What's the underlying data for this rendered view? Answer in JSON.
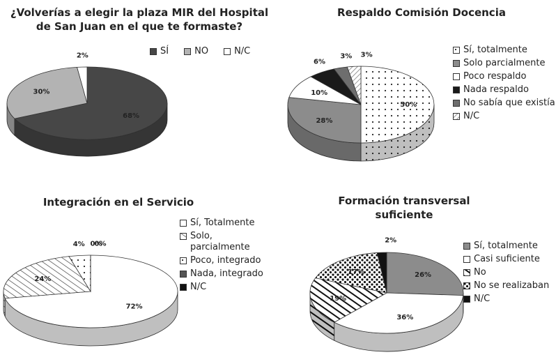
{
  "chart_data": [
    {
      "type": "pie",
      "title": "¿Volverías a elegir la plaza MIR del Hospital de San Juan en el que te formaste?",
      "categories": [
        "SÍ",
        "NO",
        "N/C"
      ],
      "values": [
        68,
        30,
        2
      ],
      "value_labels": [
        "68%",
        "30%",
        "2%"
      ],
      "colors": [
        "#474747",
        "#b3b3b3",
        "#ffffff"
      ],
      "patterns": [
        null,
        null,
        null
      ],
      "legend": "top"
    },
    {
      "type": "pie",
      "title": "Respaldo Comisión Docencia",
      "categories": [
        "Sí, totalmente",
        "Solo parcialmente",
        "Poco respaldo",
        "Nada respaldo",
        "No sabía que existía",
        "N/C"
      ],
      "values": [
        50,
        28,
        10,
        6,
        3,
        3
      ],
      "value_labels": [
        "50%",
        "28%",
        "10%",
        "6%",
        "3%",
        "3%"
      ],
      "colors": [
        "#ffffff",
        "#8c8c8c",
        "#ffffff",
        "#1a1a1a",
        "#6e6e6e",
        "#ffffff"
      ],
      "patterns": [
        "dots",
        null,
        null,
        null,
        null,
        "hatch"
      ],
      "legend": "right"
    },
    {
      "type": "pie",
      "title": "Integración en el Servicio",
      "categories": [
        "Sí, Totalmente",
        "Solo, parcialmente",
        "Poco, integrado",
        "Nada, integrado",
        "N/C"
      ],
      "values": [
        72,
        24,
        4,
        0,
        0
      ],
      "value_labels": [
        "72%",
        "24%",
        "4%",
        "0%",
        "0%"
      ],
      "colors": [
        "#ffffff",
        "#ffffff",
        "#ffffff",
        "#555555",
        "#111111"
      ],
      "patterns": [
        null,
        "diag",
        "dots",
        null,
        null
      ],
      "legend": "right"
    },
    {
      "type": "pie",
      "title": "Formación transversal suficiente",
      "categories": [
        "Sí, totalmente",
        "Casi suficiente",
        "No",
        "No se realizaban",
        "N/C"
      ],
      "values": [
        26,
        36,
        19,
        17,
        2
      ],
      "value_labels": [
        "26%",
        "36%",
        "19%",
        "17%",
        "2%"
      ],
      "colors": [
        "#8c8c8c",
        "#ffffff",
        "#ffffff",
        "#ffffff",
        "#111111"
      ],
      "patterns": [
        null,
        null,
        "diagbold",
        "stars",
        null
      ],
      "legend": "right"
    }
  ]
}
